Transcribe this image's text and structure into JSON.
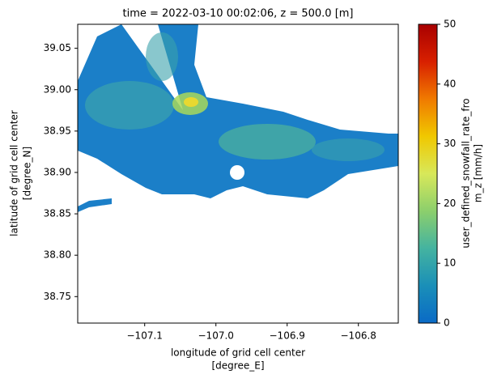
{
  "chart_data": {
    "type": "heatmap",
    "title": "time = 2022-03-10 00:02:06, z = 500.0 [m]",
    "xlabel": [
      "longitude of grid cell center",
      "[degree_E]"
    ],
    "ylabel": [
      "latitude of grid cell center",
      "[degree_N]"
    ],
    "colorbar_label": [
      "user_defined_snowfall_rate_fro",
      "m_z [mm/h]"
    ],
    "xlim": [
      -107.194,
      -106.744
    ],
    "xticks": [
      {
        "value": -107.1,
        "label": "−107.1"
      },
      {
        "value": -107.0,
        "label": "−107.0"
      },
      {
        "value": -106.9,
        "label": "−106.9"
      },
      {
        "value": -106.8,
        "label": "−106.8"
      }
    ],
    "ylim": [
      38.718,
      39.079
    ],
    "yticks": [
      {
        "value": 38.75,
        "label": "38.75"
      },
      {
        "value": 38.8,
        "label": "38.80"
      },
      {
        "value": 38.85,
        "label": "38.85"
      },
      {
        "value": 38.9,
        "label": "38.90"
      },
      {
        "value": 38.95,
        "label": "38.95"
      },
      {
        "value": 39,
        "label": "39.00"
      },
      {
        "value": 39.05,
        "label": "39.05"
      }
    ],
    "clim": [
      0,
      50
    ],
    "cticks": [
      0,
      10,
      20,
      30,
      40,
      50
    ],
    "colormap": [
      "#0a6ac6",
      "#1a8fb8",
      "#44b3a0",
      "#8ccf6c",
      "#d8e85a",
      "#f0c800",
      "#f07a00",
      "#d82000",
      "#a80000"
    ]
  }
}
